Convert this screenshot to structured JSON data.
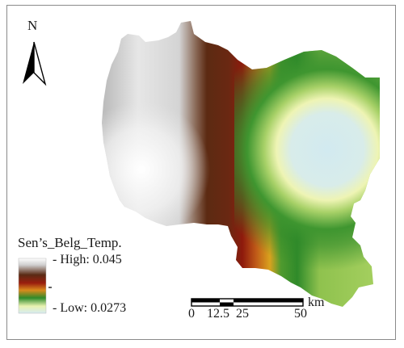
{
  "north_arrow": {
    "letter": "N",
    "icon": "north-arrow-icon"
  },
  "legend": {
    "title": "Sen’s_Belg_Temp.",
    "high_label": "- High: 0.045",
    "low_label": "- Low: 0.0273",
    "ramp_colors": [
      "#ffffff",
      "#5a2a14",
      "#9a1e0e",
      "#d98a1c",
      "#2f8a2a",
      "#e9f2b0",
      "#d6ecf2"
    ]
  },
  "scale_bar": {
    "ticks": [
      "0",
      "12.5",
      "25",
      "50"
    ],
    "unit": "km"
  },
  "map_colors": {
    "west_light": "#ffffff",
    "brown": "#5c2a12",
    "dark_red": "#8e1a0c",
    "orange": "#d9901e",
    "green_dark": "#2f8a2a",
    "green_mid": "#8fc24e",
    "pale_yellow": "#eef4b4",
    "light_blue": "#d2eaf0"
  }
}
